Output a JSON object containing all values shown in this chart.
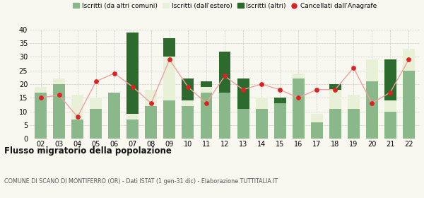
{
  "years": [
    "02",
    "03",
    "04",
    "05",
    "06",
    "07",
    "08",
    "09",
    "10",
    "11",
    "12",
    "13",
    "14",
    "15",
    "16",
    "17",
    "18",
    "19",
    "20",
    "21",
    "22"
  ],
  "iscritti_altri_comuni": [
    17,
    20,
    7,
    11,
    17,
    7,
    12,
    14,
    12,
    17,
    17,
    11,
    11,
    13,
    22,
    6,
    11,
    11,
    21,
    10,
    25
  ],
  "iscritti_estero": [
    2,
    2,
    9,
    4,
    0,
    2,
    6,
    16,
    2,
    2,
    0,
    0,
    4,
    0,
    2,
    3,
    7,
    5,
    8,
    4,
    8
  ],
  "iscritti_altri": [
    0,
    0,
    0,
    0,
    0,
    30,
    0,
    7,
    8,
    2,
    15,
    11,
    0,
    2,
    0,
    0,
    2,
    0,
    0,
    15,
    0
  ],
  "cancellati": [
    15,
    16,
    8,
    21,
    24,
    19,
    13,
    29,
    19,
    13,
    23,
    18,
    20,
    18,
    15,
    18,
    18,
    26,
    13,
    17,
    29
  ],
  "color_altri_comuni": "#8ab88a",
  "color_estero": "#e8f0d8",
  "color_altri": "#2d6a2d",
  "color_cancellati": "#dd2222",
  "color_line": "#f0a0a0",
  "ylim": [
    0,
    40
  ],
  "yticks": [
    0,
    5,
    10,
    15,
    20,
    25,
    30,
    35,
    40
  ],
  "title": "Flusso migratorio della popolazione",
  "subtitle": "COMUNE DI SCANO DI MONTIFERRO (OR) - Dati ISTAT (1 gen-31 dic) - Elaborazione TUTTITALIA.IT",
  "legend_labels": [
    "Iscritti (da altri comuni)",
    "Iscritti (dall'estero)",
    "Iscritti (altri)",
    "Cancellati dall'Anagrafe"
  ],
  "bg_color": "#f8f8f0",
  "grid_color": "#cccccc"
}
